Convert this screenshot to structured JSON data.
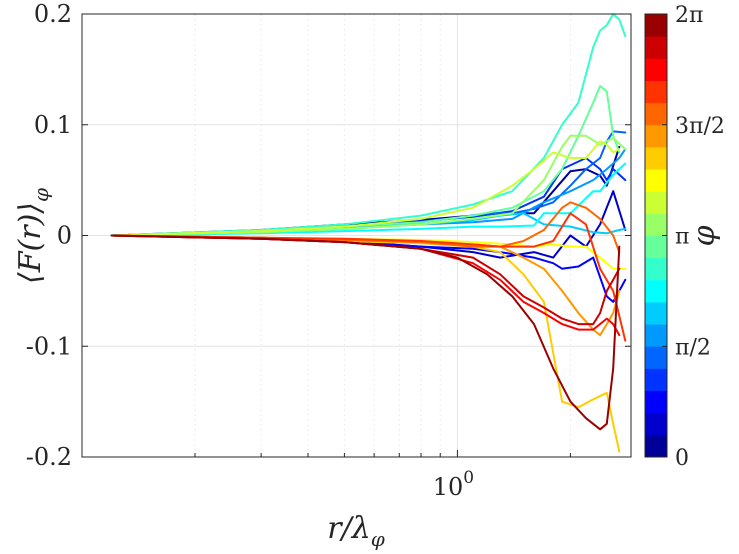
{
  "chart_data": {
    "type": "line",
    "title": "",
    "xlabel": {
      "main": "r/λ",
      "sub": "φ"
    },
    "ylabel": {
      "main": "⟨F(r)⟩",
      "sub": "φ"
    },
    "xscale": "log",
    "xlim": [
      0.1,
      2.9
    ],
    "ylim": [
      -0.2,
      0.2
    ],
    "grid": true,
    "y_ticks": [
      {
        "value": -0.2,
        "label": "-0.2"
      },
      {
        "value": -0.1,
        "label": "-0.1"
      },
      {
        "value": 0,
        "label": "0"
      },
      {
        "value": 0.1,
        "label": "0.1"
      },
      {
        "value": 0.2,
        "label": "0.2"
      }
    ],
    "x_ticks": [
      {
        "value": 1,
        "base": "10",
        "exp": "0"
      }
    ],
    "colorbar": {
      "label": "φ",
      "range": [
        0,
        6.2832
      ],
      "levels": 20,
      "tick_labels": [
        {
          "value": 0,
          "label": "0"
        },
        {
          "value": 1.5708,
          "label": "π/2"
        },
        {
          "value": 3.1416,
          "label": "π"
        },
        {
          "value": 4.7124,
          "label": "3π/2"
        },
        {
          "value": 6.2832,
          "label": "2π"
        }
      ]
    },
    "series": [
      {
        "name": "phi-0.16",
        "phi": 0.16,
        "x": [
          0.12,
          0.3,
          0.5,
          0.8,
          1.1,
          1.3,
          1.6,
          1.8,
          2.0,
          2.2,
          2.4,
          2.5,
          2.7
        ],
        "y": [
          0,
          0.005,
          0.01,
          0.014,
          0.018,
          0.02,
          0.02,
          0.04,
          0.058,
          0.06,
          0.054,
          0.045,
          0.08
        ]
      },
      {
        "name": "phi-0.47",
        "phi": 0.47,
        "x": [
          0.12,
          0.3,
          0.5,
          0.8,
          1.1,
          1.3,
          1.6,
          1.8,
          2.0,
          2.2,
          2.4,
          2.6,
          2.8
        ],
        "y": [
          0,
          -0.002,
          -0.005,
          -0.01,
          -0.015,
          -0.02,
          -0.015,
          -0.02,
          0,
          -0.01,
          0.01,
          0.04,
          0.005
        ]
      },
      {
        "name": "phi-0.79",
        "phi": 0.79,
        "x": [
          0.12,
          0.3,
          0.5,
          0.8,
          1.1,
          1.3,
          1.6,
          1.8,
          1.9,
          2.1,
          2.3,
          2.5,
          2.6,
          2.8
        ],
        "y": [
          0,
          -0.003,
          -0.006,
          -0.01,
          -0.012,
          -0.015,
          -0.02,
          -0.025,
          -0.03,
          -0.028,
          -0.02,
          -0.055,
          -0.06,
          -0.04
        ]
      },
      {
        "name": "phi-1.10",
        "phi": 1.1,
        "x": [
          0.12,
          0.3,
          0.5,
          0.8,
          1.1,
          1.4,
          1.7,
          1.9,
          2.2,
          2.4,
          2.5,
          2.6,
          2.7,
          2.8
        ],
        "y": [
          0,
          0.004,
          0.008,
          0.013,
          0.017,
          0.022,
          0.035,
          0.06,
          0.07,
          0.06,
          0.05,
          0.06,
          0.055,
          0.05
        ]
      },
      {
        "name": "phi-1.41",
        "phi": 1.41,
        "x": [
          0.12,
          0.3,
          0.5,
          0.8,
          1.0,
          1.2,
          1.4,
          1.6,
          1.8,
          2.0,
          2.2,
          2.4,
          2.5,
          2.6,
          2.8
        ],
        "y": [
          0,
          0.004,
          0.008,
          0.012,
          0.016,
          0.02,
          0.02,
          0.024,
          0.03,
          0.045,
          0.06,
          0.07,
          0.085,
          0.094,
          0.093
        ]
      },
      {
        "name": "phi-1.73",
        "phi": 1.73,
        "x": [
          0.12,
          0.3,
          0.5,
          0.8,
          1.1,
          1.4,
          1.7,
          2.0,
          2.3,
          2.5,
          2.7,
          2.8
        ],
        "y": [
          0,
          0.004,
          0.007,
          0.01,
          0.012,
          0.015,
          0.03,
          0.04,
          0.05,
          0.06,
          0.07,
          0.078
        ]
      },
      {
        "name": "phi-2.04",
        "phi": 2.04,
        "x": [
          0.12,
          0.3,
          0.5,
          0.8,
          1.1,
          1.3,
          1.5,
          1.6,
          1.7,
          2.0,
          2.3,
          2.5,
          2.7,
          2.8
        ],
        "y": [
          0,
          0.003,
          0.006,
          0.01,
          0.014,
          0.018,
          0.02,
          0.015,
          0.01,
          0.008,
          0.003,
          0.002,
          0.005,
          0.006
        ]
      },
      {
        "name": "phi-2.36",
        "phi": 2.36,
        "x": [
          0.12,
          0.3,
          0.5,
          0.8,
          1.1,
          1.3,
          1.6,
          1.7,
          2.0,
          2.3,
          2.4,
          2.6,
          2.8
        ],
        "y": [
          0,
          0.002,
          0.004,
          0.006,
          0.008,
          0.008,
          0.009,
          0.02,
          0.02,
          0.04,
          0.04,
          0.055,
          0.065
        ]
      },
      {
        "name": "phi-2.67",
        "phi": 2.67,
        "x": [
          0.12,
          0.3,
          0.5,
          0.8,
          1.1,
          1.4,
          1.7,
          1.9,
          2.1,
          2.3,
          2.4,
          2.5,
          2.6,
          2.7,
          2.8
        ],
        "y": [
          0,
          0.005,
          0.01,
          0.018,
          0.028,
          0.04,
          0.07,
          0.1,
          0.12,
          0.17,
          0.185,
          0.19,
          0.2,
          0.195,
          0.18
        ]
      },
      {
        "name": "phi-2.98",
        "phi": 2.98,
        "x": [
          0.12,
          0.3,
          0.5,
          0.8,
          1.1,
          1.4,
          1.7,
          1.9,
          2.1,
          2.3,
          2.4,
          2.5,
          2.6,
          2.7
        ],
        "y": [
          0,
          0.004,
          0.008,
          0.012,
          0.018,
          0.025,
          0.04,
          0.06,
          0.09,
          0.12,
          0.135,
          0.13,
          0.09,
          0.075
        ]
      },
      {
        "name": "phi-3.30",
        "phi": 3.3,
        "x": [
          0.12,
          0.3,
          0.5,
          0.8,
          1.1,
          1.4,
          1.7,
          1.9,
          2.0,
          2.2,
          2.4,
          2.6,
          2.8
        ],
        "y": [
          0,
          0.003,
          0.006,
          0.01,
          0.015,
          0.02,
          0.05,
          0.08,
          0.09,
          0.09,
          0.082,
          0.088,
          0.078
        ]
      },
      {
        "name": "phi-3.61",
        "phi": 3.61,
        "x": [
          0.12,
          0.3,
          0.5,
          0.8,
          1.1,
          1.4,
          1.6,
          1.8,
          2.0,
          2.2,
          2.4,
          2.5,
          2.6,
          2.7
        ],
        "y": [
          0,
          0.004,
          0.008,
          0.015,
          0.025,
          0.045,
          0.06,
          0.075,
          0.07,
          0.07,
          0.085,
          0.082,
          0.075,
          0.078
        ]
      },
      {
        "name": "phi-3.93",
        "phi": 3.93,
        "x": [
          0.12,
          0.3,
          0.5,
          0.8,
          1.1,
          1.4,
          1.6,
          1.8,
          2.0,
          2.2,
          2.4,
          2.6,
          2.8
        ],
        "y": [
          0,
          -0.002,
          -0.003,
          -0.004,
          -0.006,
          -0.008,
          -0.01,
          -0.008,
          -0.01,
          -0.01,
          -0.02,
          -0.03,
          -0.03
        ]
      },
      {
        "name": "phi-4.24",
        "phi": 4.24,
        "x": [
          0.12,
          0.3,
          0.5,
          0.8,
          1.1,
          1.3,
          1.5,
          1.7,
          1.9,
          2.1,
          2.3,
          2.5,
          2.6,
          2.7
        ],
        "y": [
          0,
          -0.003,
          -0.005,
          -0.007,
          -0.01,
          -0.015,
          -0.035,
          -0.06,
          -0.15,
          -0.155,
          -0.148,
          -0.142,
          -0.17,
          -0.195
        ]
      },
      {
        "name": "phi-4.56",
        "phi": 4.56,
        "x": [
          0.12,
          0.3,
          0.5,
          0.8,
          1.1,
          1.3,
          1.5,
          1.7,
          1.9,
          2.1,
          2.3,
          2.4,
          2.5,
          2.6,
          2.7
        ],
        "y": [
          0,
          -0.002,
          -0.004,
          -0.006,
          -0.008,
          -0.01,
          -0.02,
          -0.03,
          -0.05,
          -0.07,
          -0.085,
          -0.09,
          -0.08,
          -0.07,
          -0.05
        ]
      },
      {
        "name": "phi-4.87",
        "phi": 4.87,
        "x": [
          0.12,
          0.3,
          0.5,
          0.8,
          1.1,
          1.3,
          1.5,
          1.7,
          1.9,
          2.0,
          2.2,
          2.4,
          2.6,
          2.7
        ],
        "y": [
          0,
          -0.002,
          -0.004,
          -0.006,
          -0.01,
          -0.01,
          -0.005,
          0.005,
          0.025,
          0.03,
          0.025,
          0.015,
          0.0,
          -0.015
        ]
      },
      {
        "name": "phi-5.18",
        "phi": 5.18,
        "x": [
          0.12,
          0.3,
          0.5,
          0.8,
          1.1,
          1.3,
          1.6,
          1.8,
          2.0,
          2.2,
          2.4,
          2.6,
          2.8
        ],
        "y": [
          0,
          -0.002,
          -0.003,
          -0.005,
          -0.008,
          -0.01,
          -0.01,
          -0.005,
          0.02,
          0.01,
          -0.03,
          -0.05,
          -0.095
        ]
      },
      {
        "name": "phi-5.50",
        "phi": 5.5,
        "x": [
          0.12,
          0.3,
          0.5,
          0.8,
          1.1,
          1.3,
          1.5,
          1.7,
          1.9,
          2.1,
          2.3,
          2.5,
          2.6,
          2.7
        ],
        "y": [
          0,
          -0.003,
          -0.006,
          -0.012,
          -0.025,
          -0.04,
          -0.06,
          -0.07,
          -0.08,
          -0.085,
          -0.085,
          -0.075,
          -0.08,
          -0.09
        ]
      },
      {
        "name": "phi-5.81",
        "phi": 5.81,
        "x": [
          0.12,
          0.3,
          0.5,
          0.8,
          1.1,
          1.3,
          1.5,
          1.7,
          1.9,
          2.1,
          2.3,
          2.4,
          2.5,
          2.6,
          2.7
        ],
        "y": [
          0,
          -0.003,
          -0.006,
          -0.012,
          -0.02,
          -0.035,
          -0.055,
          -0.065,
          -0.075,
          -0.08,
          -0.08,
          -0.07,
          -0.05,
          -0.04,
          -0.03
        ]
      },
      {
        "name": "phi-6.12",
        "phi": 6.12,
        "x": [
          0.12,
          0.3,
          0.5,
          0.8,
          1.0,
          1.2,
          1.4,
          1.6,
          1.8,
          2.0,
          2.2,
          2.4,
          2.5,
          2.6,
          2.7
        ],
        "y": [
          0,
          -0.003,
          -0.006,
          -0.012,
          -0.02,
          -0.035,
          -0.055,
          -0.08,
          -0.12,
          -0.15,
          -0.165,
          -0.175,
          -0.17,
          -0.12,
          -0.01
        ]
      }
    ]
  }
}
